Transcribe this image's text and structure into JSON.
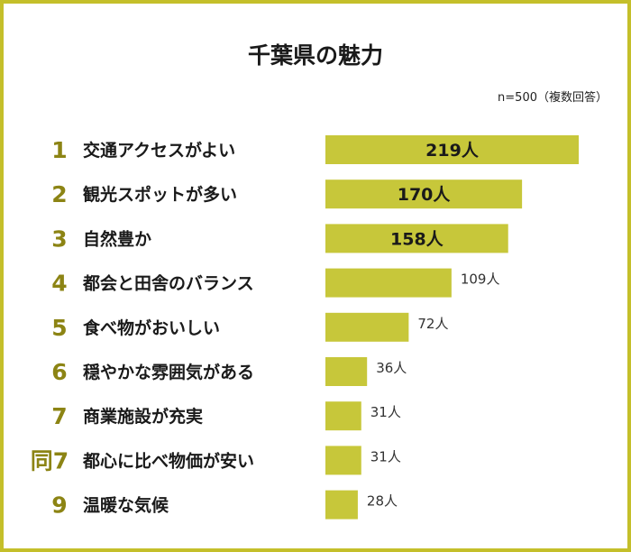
{
  "title": "千葉県の魅力",
  "note": "n=500（複数回答）",
  "bar_color": "#c7c73a",
  "rank_color": "#8c8414",
  "border_color": "#c4bf2a",
  "unit": "人",
  "chart_data": {
    "type": "bar",
    "orientation": "horizontal",
    "title": "千葉県の魅力",
    "ranks": [
      "1",
      "2",
      "3",
      "4",
      "5",
      "6",
      "7",
      "同7",
      "9"
    ],
    "categories": [
      "交通アクセスがよい",
      "観光スポットが多い",
      "自然豊か",
      "都会と田舎のバランス",
      "食べ物がおいしい",
      "穏やかな雰囲気がある",
      "商業施設が充実",
      "都心に比べ物価が安い",
      "温暖な気候"
    ],
    "values": [
      219,
      170,
      158,
      109,
      72,
      36,
      31,
      31,
      28
    ],
    "value_labels": [
      "219人",
      "170人",
      "158人",
      "109人",
      "72人",
      "36人",
      "31人",
      "31人",
      "28人"
    ],
    "xlim": [
      0,
      219
    ]
  }
}
